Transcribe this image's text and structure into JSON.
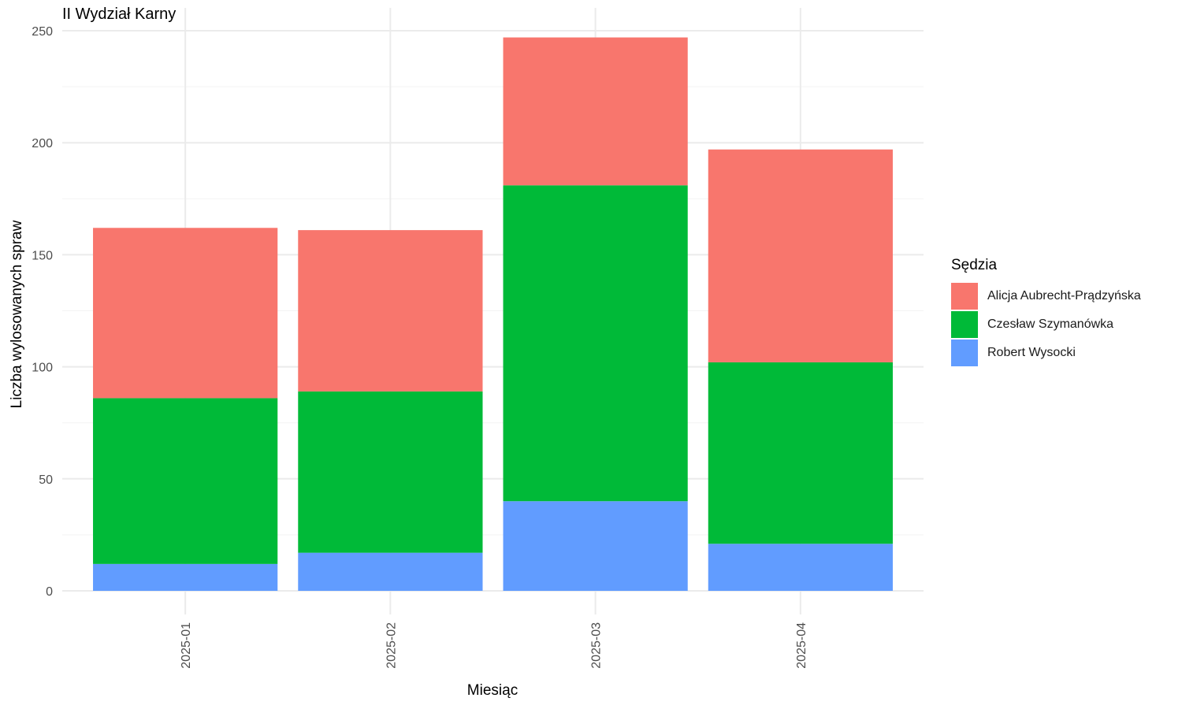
{
  "chart_data": {
    "type": "bar",
    "stacked": true,
    "title": "II Wydział Karny",
    "xlabel": "Miesiąc",
    "ylabel": "Liczba wylosowanych spraw",
    "categories": [
      "2025-01",
      "2025-02",
      "2025-03",
      "2025-04"
    ],
    "series": [
      {
        "name": "Robert Wysocki",
        "color": "#619CFF",
        "values": [
          12,
          17,
          40,
          21
        ]
      },
      {
        "name": "Czesław Szymanówka",
        "color": "#00BA38",
        "values": [
          74,
          72,
          141,
          81
        ]
      },
      {
        "name": "Alicja Aubrecht-Prądzyńska",
        "color": "#F8766D",
        "values": [
          76,
          72,
          66,
          95
        ]
      }
    ],
    "ylim": [
      0,
      250
    ],
    "yticks": [
      0,
      50,
      100,
      150,
      200,
      250
    ],
    "grid": true,
    "legend": {
      "title": "Sędzia",
      "position": "right",
      "order": [
        "Alicja Aubrecht-Prądzyńska",
        "Czesław Szymanówka",
        "Robert Wysocki"
      ]
    }
  }
}
